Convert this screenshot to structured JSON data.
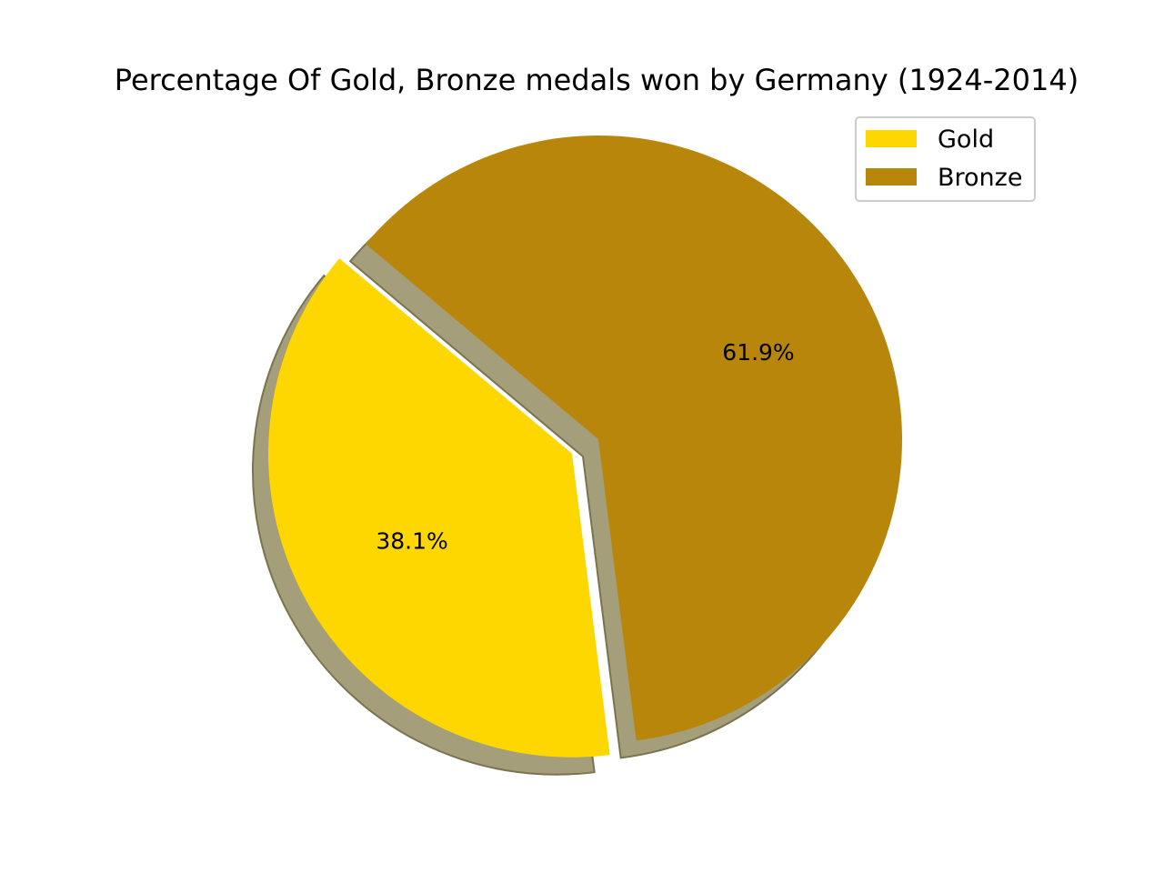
{
  "chart_data": {
    "type": "pie",
    "title": "Percentage Of Gold, Bronze medals won by Germany (1924-2014)",
    "slices": [
      {
        "label": "Gold",
        "value": 38.1,
        "pct_label": "38.1%",
        "color": "#FFD700",
        "exploded": true
      },
      {
        "label": "Bronze",
        "value": 61.9,
        "pct_label": "61.9%",
        "color": "#B8860B",
        "exploded": false
      }
    ],
    "shadow": true,
    "legend": {
      "position": "top-right",
      "entries": [
        "Gold",
        "Bronze"
      ]
    },
    "shadow_color": "#A59E7B"
  }
}
